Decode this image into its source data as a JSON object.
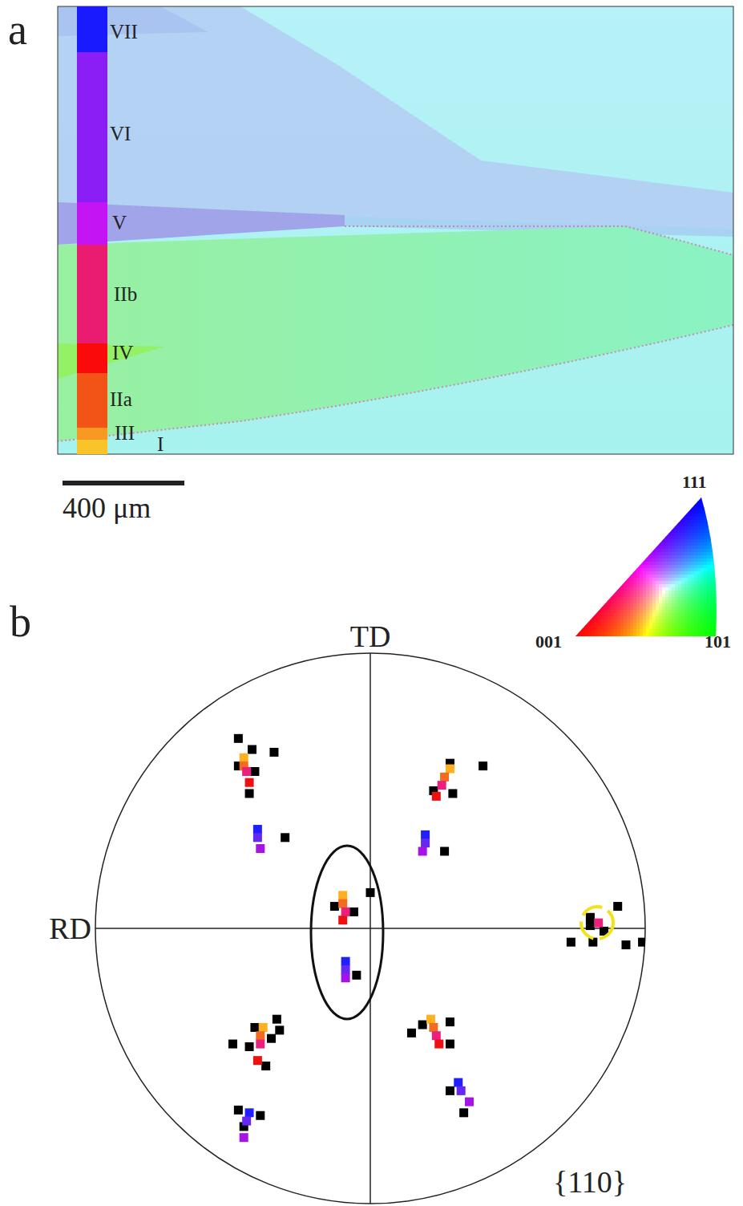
{
  "panel_a": {
    "panel_label": "a",
    "regions": [
      {
        "label": "VII",
        "color": "#1a1aff"
      },
      {
        "label": "VI",
        "color": "#8a1ef4"
      },
      {
        "label": "V",
        "color": "#c414f4"
      },
      {
        "label": "IIb",
        "color": "#ea1c72"
      },
      {
        "label": "IV",
        "color": "#fa0a0a"
      },
      {
        "label": "IIa",
        "color": "#f25418"
      },
      {
        "label": "III",
        "color": "#f89a22"
      },
      {
        "label": "I",
        "color": "#f8c42a"
      }
    ],
    "scale_bar": "400 μm",
    "color_key": {
      "corners": [
        "001",
        "101",
        "111"
      ]
    }
  },
  "chart_data": {
    "type": "scatter",
    "panel_label": "b",
    "title": "{110}",
    "x_label": "RD",
    "y_label": "TD",
    "xlim": [
      -1,
      1
    ],
    "ylim": [
      -1,
      1
    ],
    "tick_labels": false,
    "marker": "square",
    "series": [
      {
        "color": "#000000",
        "x": [
          -0.48,
          -0.48,
          -0.43,
          -0.35,
          -0.44,
          -0.42,
          0.29,
          0.41,
          0.3,
          0.23,
          0.0,
          -0.13,
          -0.06,
          -0.42,
          -0.34,
          -0.5,
          -0.44,
          -0.36,
          -0.38,
          -0.33,
          0.15,
          0.29,
          0.29,
          0.19,
          0.9,
          0.8,
          0.85,
          0.81,
          0.73,
          0.93,
          0.99,
          0.8,
          -0.31,
          0.27,
          -0.05,
          -0.48,
          -0.4,
          -0.46,
          0.34,
          0.29
        ],
        "y": [
          0.69,
          0.59,
          0.65,
          0.64,
          0.49,
          0.57,
          0.6,
          0.59,
          0.49,
          0.5,
          0.13,
          0.08,
          0.06,
          -0.36,
          -0.33,
          -0.42,
          -0.43,
          -0.4,
          -0.5,
          -0.37,
          -0.38,
          -0.34,
          -0.42,
          -0.35,
          0.08,
          0.01,
          -0.01,
          -0.05,
          -0.05,
          -0.06,
          -0.05,
          0.04,
          0.33,
          0.28,
          -0.17,
          -0.66,
          -0.68,
          -0.72,
          -0.67,
          -0.59
        ]
      },
      {
        "name": "III",
        "color": "#ffb020",
        "x": [
          -0.46,
          0.29,
          -0.1,
          -0.39,
          0.22
        ],
        "y": [
          0.62,
          0.58,
          0.12,
          -0.36,
          -0.33
        ]
      },
      {
        "name": "IIa",
        "color": "#f46a1e",
        "x": [
          -0.46,
          0.27,
          -0.1,
          -0.4,
          0.23
        ],
        "y": [
          0.59,
          0.55,
          0.09,
          -0.39,
          -0.36
        ]
      },
      {
        "name": "IIb",
        "color": "#ec1f7c",
        "x": [
          -0.45,
          0.26,
          -0.09,
          -0.4,
          0.24,
          0.83
        ],
        "y": [
          0.57,
          0.52,
          0.06,
          -0.42,
          -0.39,
          0.02
        ]
      },
      {
        "name": "IV",
        "color": "#ee1010",
        "x": [
          -0.44,
          0.24,
          -0.1,
          -0.41,
          0.25
        ],
        "y": [
          0.53,
          0.48,
          0.03,
          -0.48,
          -0.42
        ]
      },
      {
        "name": "VII",
        "color": "#2020ff",
        "x": [
          -0.41,
          0.2,
          -0.09,
          -0.44,
          0.32
        ],
        "y": [
          0.36,
          0.34,
          -0.12,
          -0.67,
          -0.56
        ]
      },
      {
        "name": "VI",
        "color": "#6428f0",
        "x": [
          -0.41,
          0.2,
          -0.09,
          -0.45,
          0.33
        ],
        "y": [
          0.33,
          0.31,
          -0.15,
          -0.7,
          -0.59
        ]
      },
      {
        "name": "V",
        "color": "#a414e4",
        "x": [
          -0.4,
          0.19,
          -0.09,
          -0.46,
          0.36
        ],
        "y": [
          0.29,
          0.28,
          -0.18,
          -0.76,
          -0.63
        ]
      }
    ]
  }
}
